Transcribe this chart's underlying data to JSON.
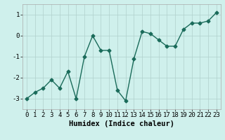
{
  "x": [
    0,
    1,
    2,
    3,
    4,
    5,
    6,
    7,
    8,
    9,
    10,
    11,
    12,
    13,
    14,
    15,
    16,
    17,
    18,
    19,
    20,
    21,
    22,
    23
  ],
  "y": [
    -3.0,
    -2.7,
    -2.5,
    -2.1,
    -2.5,
    -1.7,
    -3.0,
    -1.0,
    0.0,
    -0.7,
    -0.7,
    -2.6,
    -3.1,
    -1.1,
    0.2,
    0.1,
    -0.2,
    -0.5,
    -0.5,
    0.3,
    0.6,
    0.6,
    0.7,
    1.1
  ],
  "line_color": "#1a6b5a",
  "marker": "D",
  "markersize": 2.5,
  "linewidth": 1.0,
  "bg_color": "#cff0ec",
  "grid_color": "#b0d0cc",
  "xlabel": "Humidex (Indice chaleur)",
  "xlabel_fontsize": 7.5,
  "tick_fontsize": 6.5,
  "xlim": [
    -0.5,
    23.5
  ],
  "ylim": [
    -3.5,
    1.5
  ],
  "yticks": [
    -3,
    -2,
    -1,
    0,
    1
  ],
  "xticks": [
    0,
    1,
    2,
    3,
    4,
    5,
    6,
    7,
    8,
    9,
    10,
    11,
    12,
    13,
    14,
    15,
    16,
    17,
    18,
    19,
    20,
    21,
    22,
    23
  ]
}
